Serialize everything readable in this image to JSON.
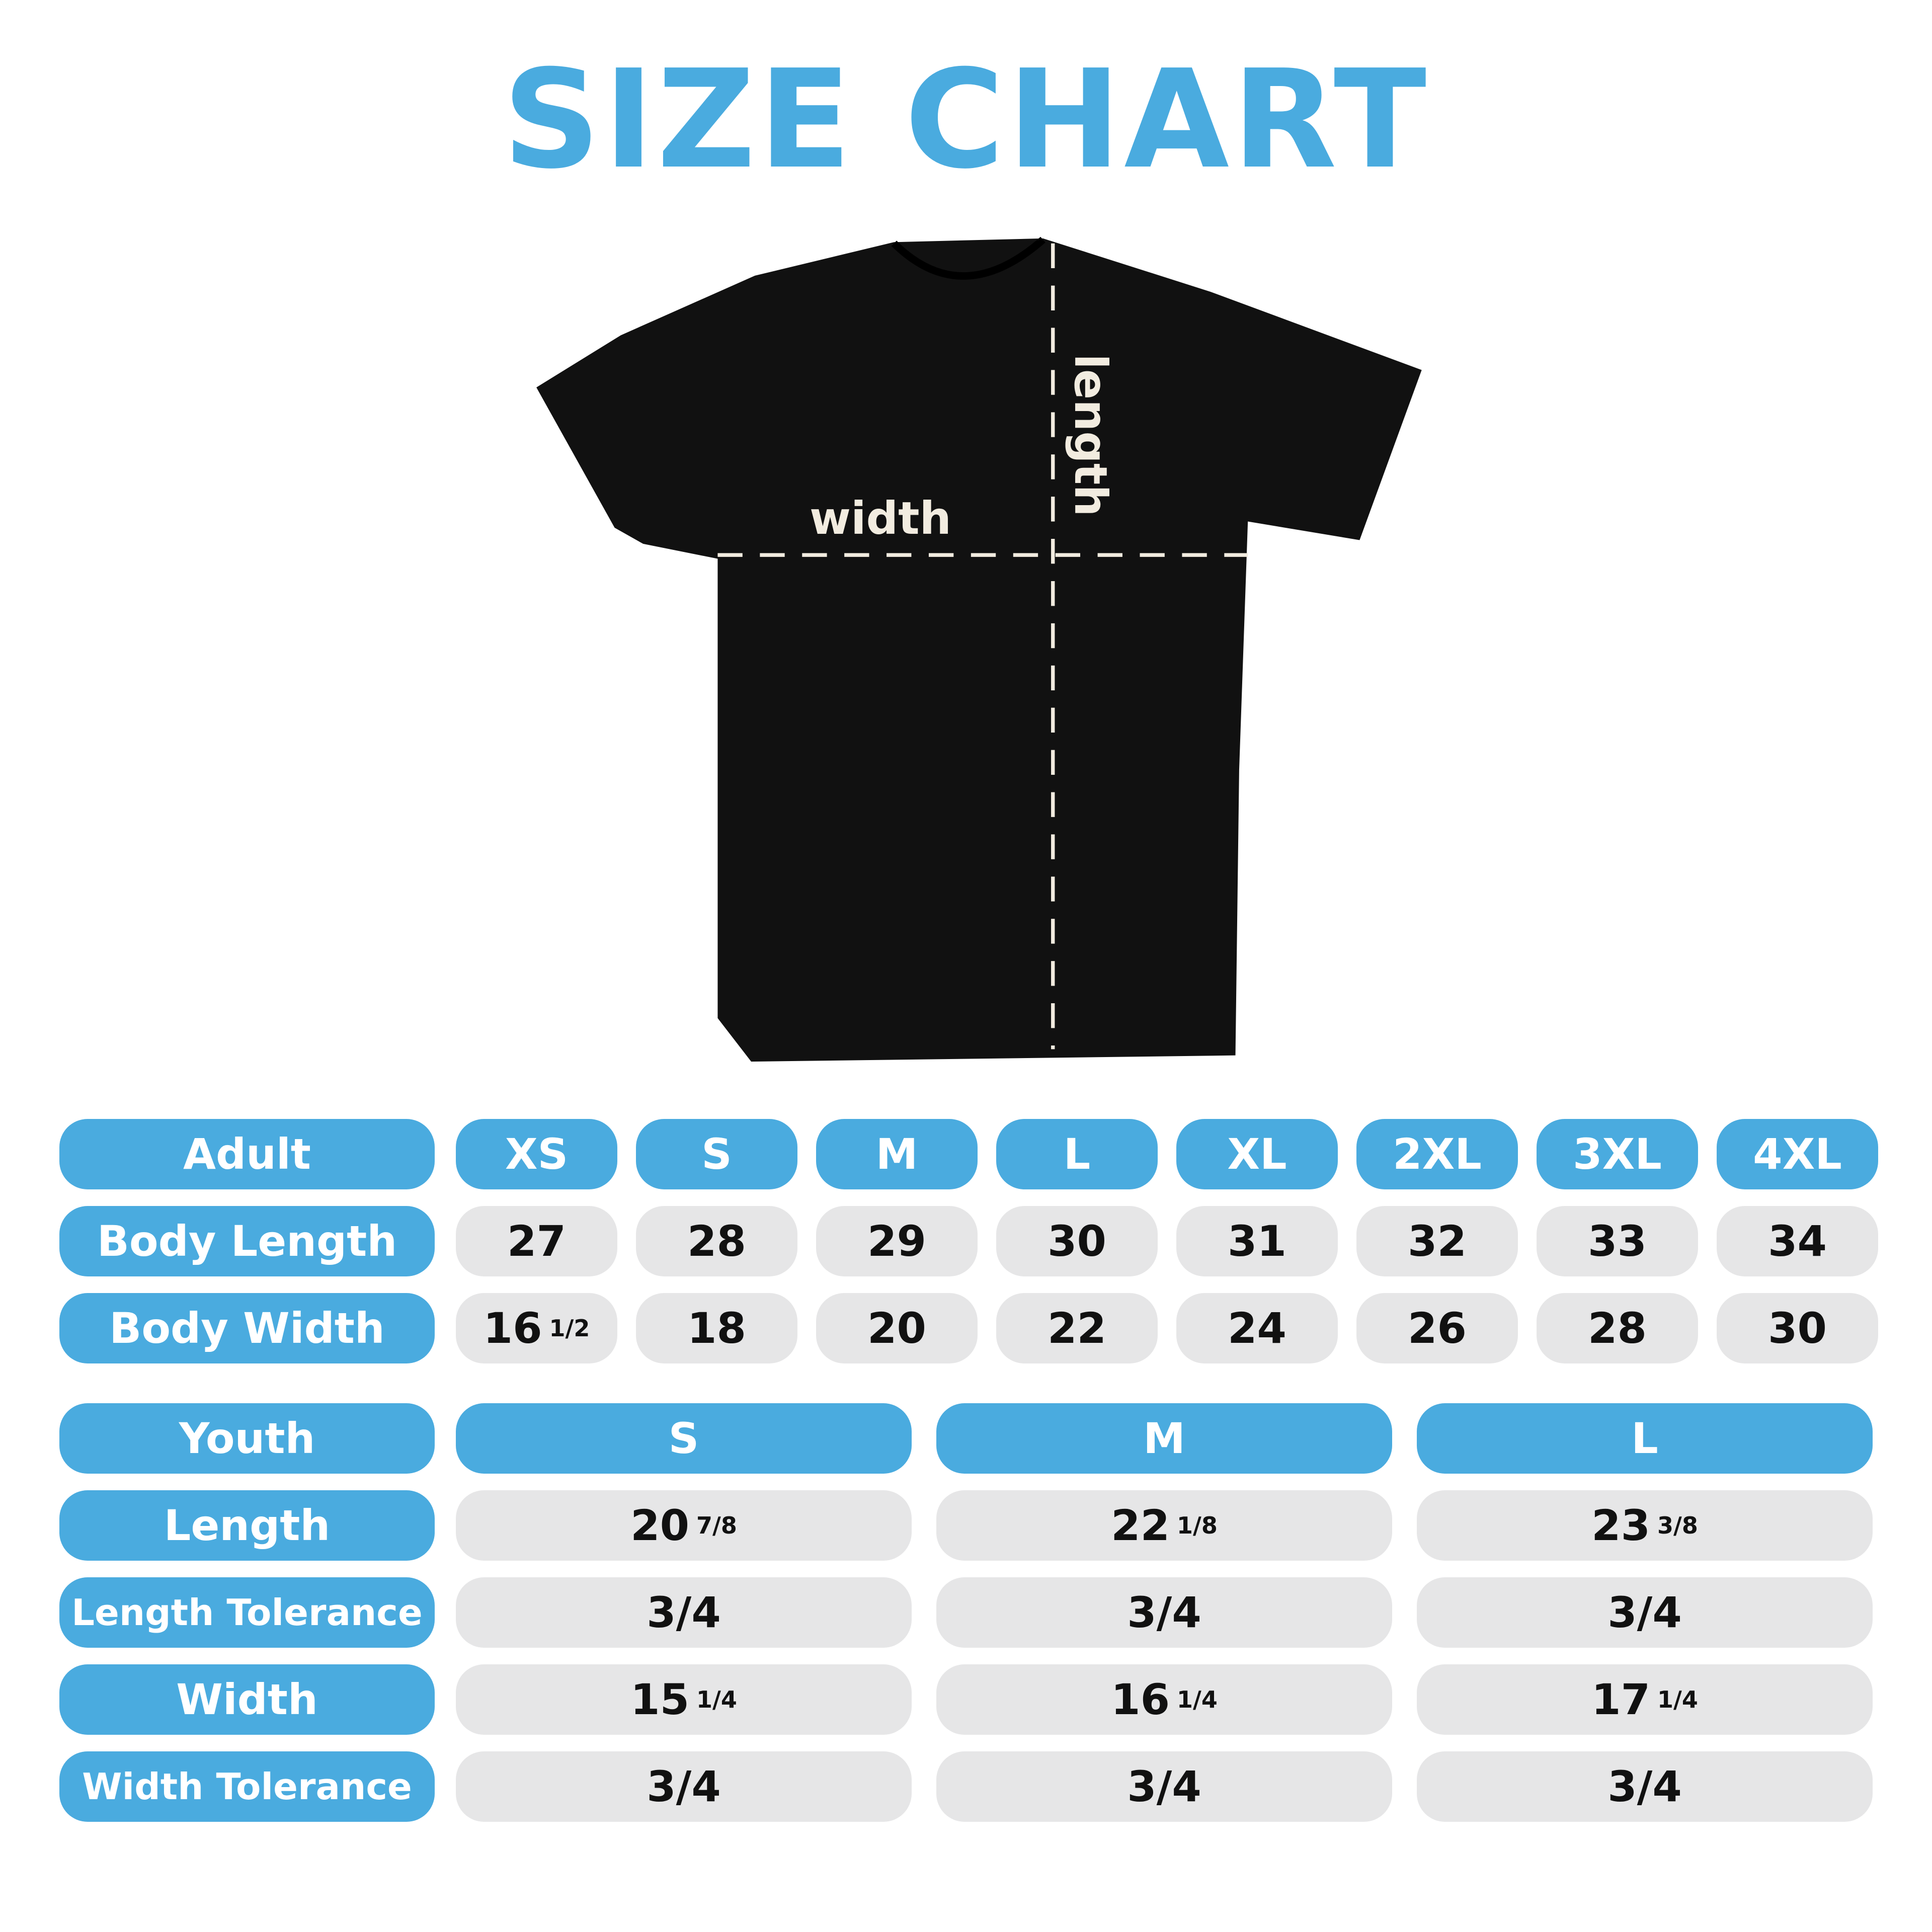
{
  "title": "SIZE CHART",
  "diagram": {
    "width_label": "width",
    "length_label": "length",
    "shirt_color": "#111111",
    "accent": "#4aabdf"
  },
  "adult": {
    "header": "Adult",
    "sizes": [
      "XS",
      "S",
      "M",
      "L",
      "XL",
      "2XL",
      "3XL",
      "4XL"
    ],
    "rows": [
      {
        "label": "Body Length",
        "values": [
          {
            "w": "27",
            "f": ""
          },
          {
            "w": "28",
            "f": ""
          },
          {
            "w": "29",
            "f": ""
          },
          {
            "w": "30",
            "f": ""
          },
          {
            "w": "31",
            "f": ""
          },
          {
            "w": "32",
            "f": ""
          },
          {
            "w": "33",
            "f": ""
          },
          {
            "w": "34",
            "f": ""
          }
        ]
      },
      {
        "label": "Body Width",
        "values": [
          {
            "w": "16",
            "f": "1/2"
          },
          {
            "w": "18",
            "f": ""
          },
          {
            "w": "20",
            "f": ""
          },
          {
            "w": "22",
            "f": ""
          },
          {
            "w": "24",
            "f": ""
          },
          {
            "w": "26",
            "f": ""
          },
          {
            "w": "28",
            "f": ""
          },
          {
            "w": "30",
            "f": ""
          }
        ]
      }
    ]
  },
  "youth": {
    "header": "Youth",
    "sizes": [
      "S",
      "M",
      "L"
    ],
    "rows": [
      {
        "label": "Length",
        "values": [
          {
            "w": "20",
            "f": "7/8"
          },
          {
            "w": "22",
            "f": "1/8"
          },
          {
            "w": "23",
            "f": "3/8"
          }
        ]
      },
      {
        "label": "Length Tolerance",
        "values": [
          {
            "w": "3/4",
            "f": ""
          },
          {
            "w": "3/4",
            "f": ""
          },
          {
            "w": "3/4",
            "f": ""
          }
        ]
      },
      {
        "label": "Width",
        "values": [
          {
            "w": "15",
            "f": "1/4"
          },
          {
            "w": "16",
            "f": "1/4"
          },
          {
            "w": "17",
            "f": "1/4"
          }
        ]
      },
      {
        "label": "Width Tolerance",
        "values": [
          {
            "w": "3/4",
            "f": ""
          },
          {
            "w": "3/4",
            "f": ""
          },
          {
            "w": "3/4",
            "f": ""
          }
        ]
      }
    ]
  }
}
